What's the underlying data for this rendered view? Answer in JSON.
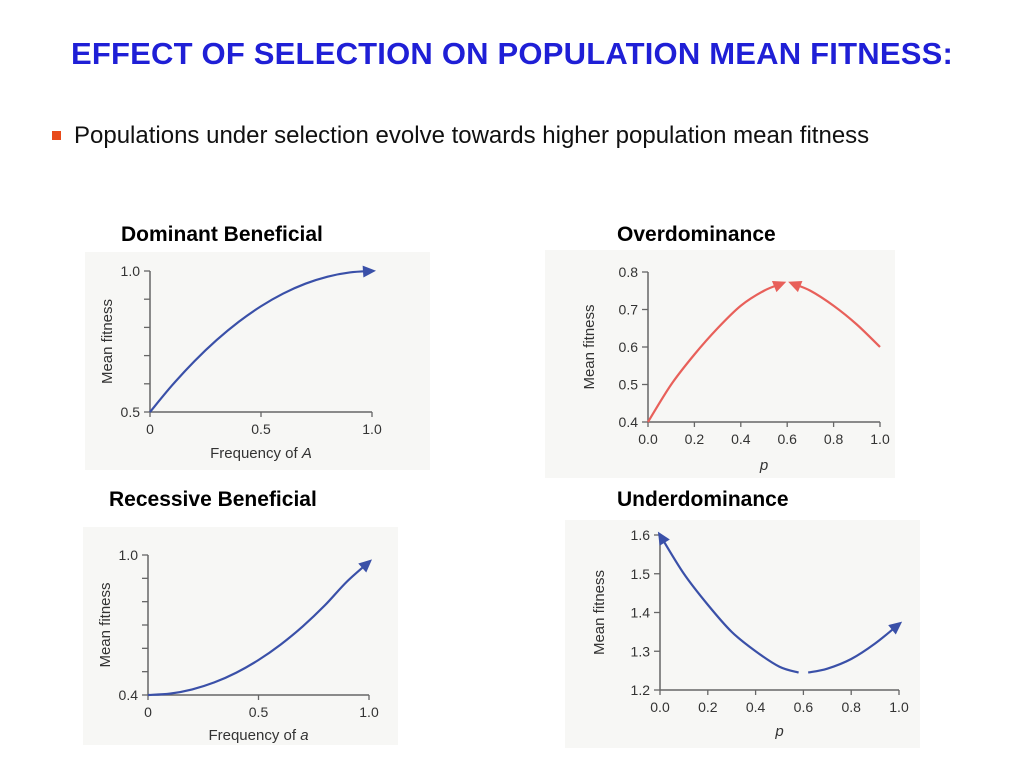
{
  "slide": {
    "title": "EFFECT OF SELECTION ON POPULATION MEAN FITNESS:",
    "bullet": "Populations under selection evolve towards higher population mean fitness",
    "bullet_color": "#e84a1a",
    "title_color": "#1f1fd6"
  },
  "chart_data": [
    {
      "panel_title": "Dominant Beneficial",
      "type": "line",
      "xlabel": "Frequency of A",
      "xlabel_var": "A",
      "ylabel": "Mean fitness",
      "xlim": [
        0,
        1
      ],
      "ylim": [
        0.5,
        1.0
      ],
      "xticks": [
        0,
        0.5,
        1.0
      ],
      "xtick_labels": [
        "0",
        "0.5",
        "1.0"
      ],
      "yticks": [
        0.5,
        0.6,
        0.7,
        0.8,
        0.9,
        1.0
      ],
      "ytick_labels": [
        "0.5",
        "",
        "",
        "",
        "",
        "1.0"
      ],
      "color": "#3a50a8",
      "arrows": [
        "end"
      ],
      "series": [
        {
          "x": [
            0,
            0.1,
            0.2,
            0.3,
            0.4,
            0.5,
            0.6,
            0.7,
            0.8,
            0.9,
            1.0
          ],
          "values": [
            0.5,
            0.595,
            0.68,
            0.755,
            0.82,
            0.875,
            0.92,
            0.955,
            0.98,
            0.995,
            1.0
          ]
        }
      ]
    },
    {
      "panel_title": "Overdominance",
      "type": "line",
      "xlabel": "p",
      "ylabel": "Mean fitness",
      "xlim": [
        0,
        1
      ],
      "ylim": [
        0.4,
        0.8
      ],
      "xticks": [
        0,
        0.2,
        0.4,
        0.6,
        0.8,
        1.0
      ],
      "xtick_labels": [
        "0.0",
        "0.2",
        "0.4",
        "0.6",
        "0.8",
        "1.0"
      ],
      "yticks": [
        0.4,
        0.5,
        0.6,
        0.7,
        0.8
      ],
      "ytick_labels": [
        "0.4",
        "0.5",
        "0.6",
        "0.7",
        "0.8"
      ],
      "color": "#e8605a",
      "arrows": [
        "end",
        "start"
      ],
      "series": [
        {
          "x": [
            0,
            0.1,
            0.2,
            0.3,
            0.4,
            0.5,
            0.58
          ],
          "values": [
            0.4,
            0.5,
            0.58,
            0.65,
            0.71,
            0.75,
            0.77
          ]
        },
        {
          "x": [
            0.62,
            0.7,
            0.8,
            0.9,
            1.0
          ],
          "values": [
            0.77,
            0.75,
            0.71,
            0.66,
            0.6
          ]
        }
      ]
    },
    {
      "panel_title": "Recessive Beneficial",
      "type": "line",
      "xlabel": "Frequency of a",
      "xlabel_var": "a",
      "ylabel": "Mean fitness",
      "xlim": [
        0,
        1
      ],
      "ylim": [
        0.4,
        1.0
      ],
      "xticks": [
        0,
        0.5,
        1.0
      ],
      "xtick_labels": [
        "0",
        "0.5",
        "1.0"
      ],
      "yticks": [
        0.4,
        0.5,
        0.6,
        0.7,
        0.8,
        0.9,
        1.0
      ],
      "ytick_labels": [
        "0.4",
        "",
        "",
        "",
        "",
        "",
        "1.0"
      ],
      "color": "#3a50a8",
      "arrows": [
        "end"
      ],
      "series": [
        {
          "x": [
            0,
            0.1,
            0.2,
            0.3,
            0.4,
            0.5,
            0.6,
            0.7,
            0.8,
            0.9,
            1.0
          ],
          "values": [
            0.4,
            0.406,
            0.424,
            0.454,
            0.496,
            0.55,
            0.616,
            0.694,
            0.784,
            0.886,
            0.97
          ]
        }
      ]
    },
    {
      "panel_title": "Underdominance",
      "type": "line",
      "xlabel": "p",
      "ylabel": "Mean fitness",
      "xlim": [
        0,
        1
      ],
      "ylim": [
        1.2,
        1.6
      ],
      "xticks": [
        0,
        0.2,
        0.4,
        0.6,
        0.8,
        1.0
      ],
      "xtick_labels": [
        "0.0",
        "0.2",
        "0.4",
        "0.6",
        "0.8",
        "1.0"
      ],
      "yticks": [
        1.2,
        1.3,
        1.4,
        1.5,
        1.6
      ],
      "ytick_labels": [
        "1.2",
        "1.3",
        "1.4",
        "1.5",
        "1.6"
      ],
      "color": "#3a50a8",
      "arrows": [
        "start",
        "end"
      ],
      "series": [
        {
          "x": [
            0,
            0.1,
            0.2,
            0.3,
            0.4,
            0.5,
            0.58
          ],
          "values": [
            1.6,
            1.5,
            1.42,
            1.35,
            1.3,
            1.26,
            1.245
          ]
        },
        {
          "x": [
            0.62,
            0.7,
            0.8,
            0.9,
            1.0
          ],
          "values": [
            1.245,
            1.255,
            1.28,
            1.32,
            1.37
          ]
        }
      ]
    }
  ]
}
